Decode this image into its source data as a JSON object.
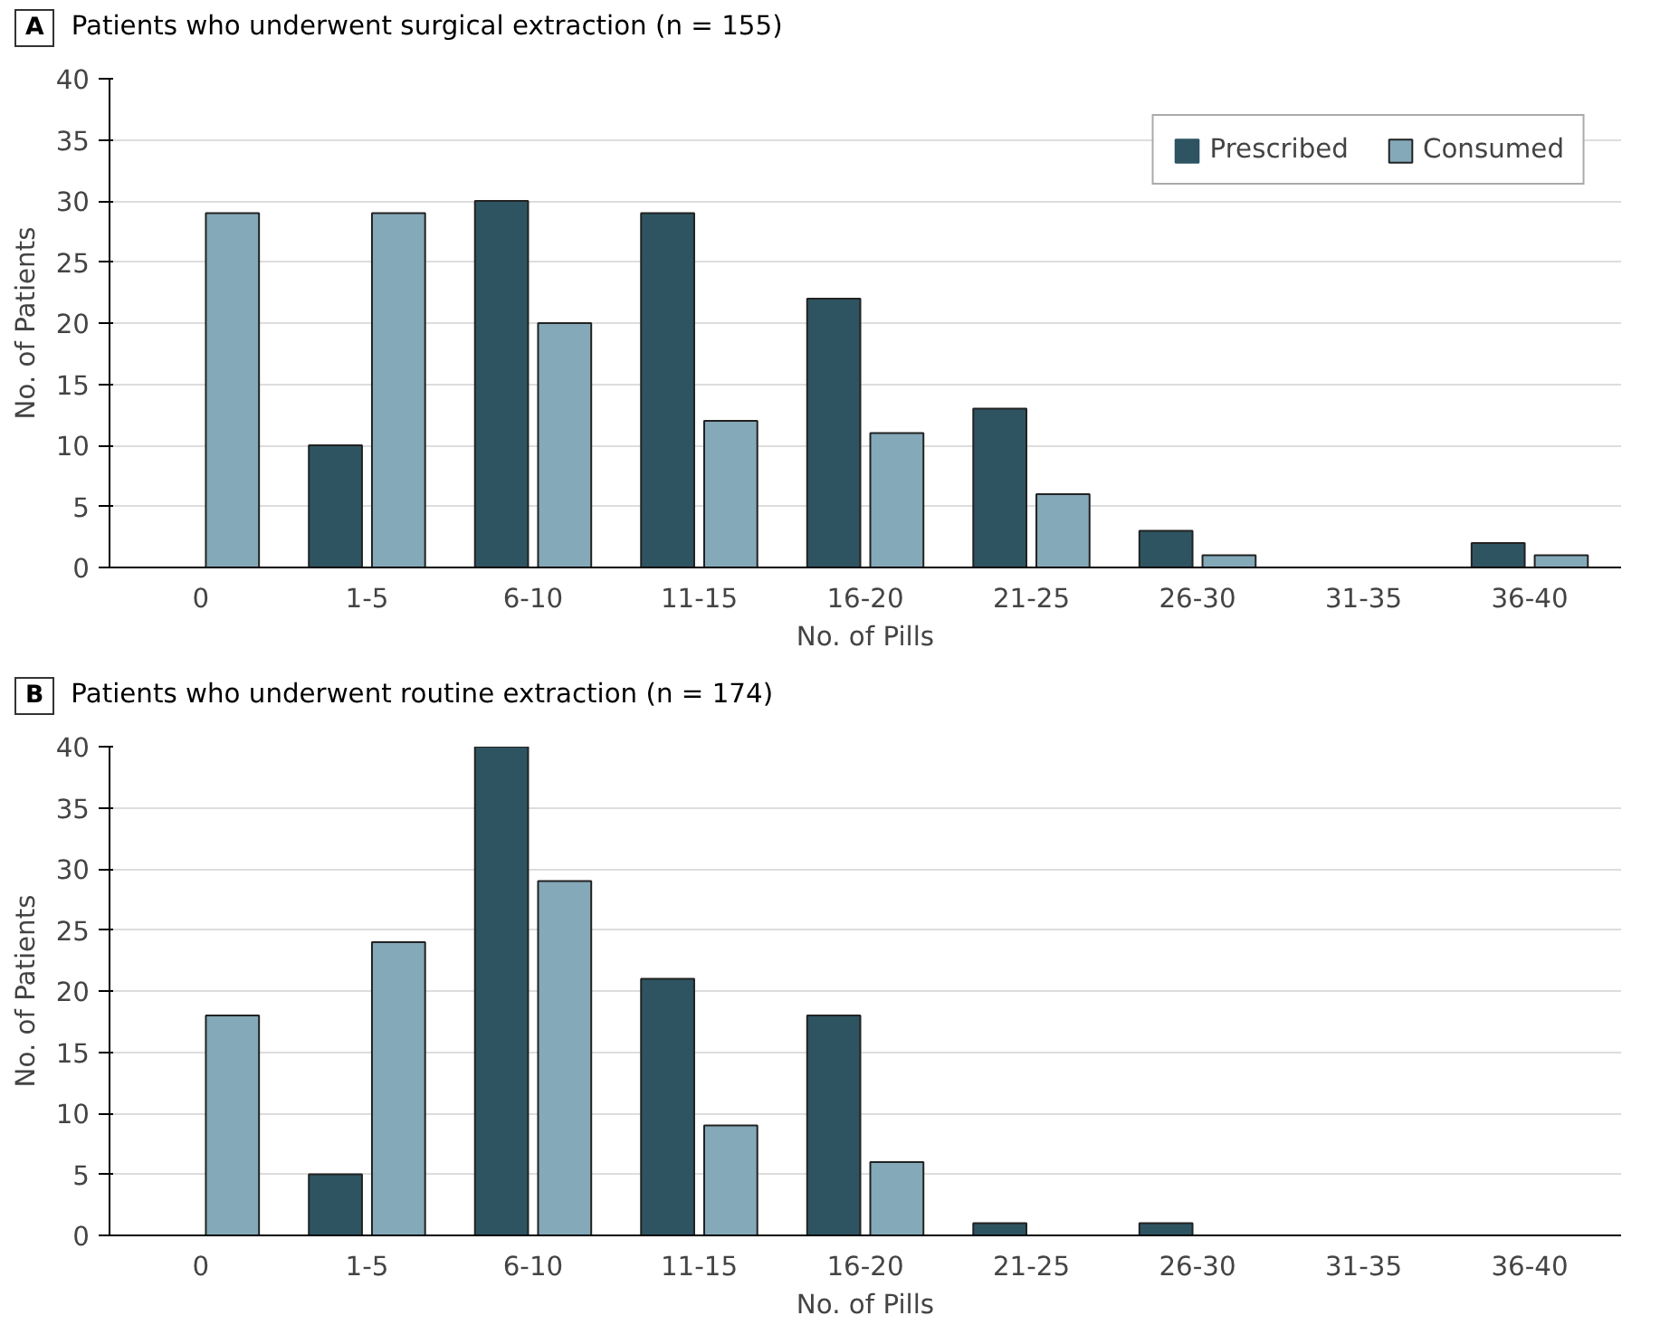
{
  "chart_data": [
    {
      "type": "bar",
      "title": "Patients who underwent surgical extraction (n = 155)",
      "annotations": [
        "A"
      ],
      "xlabel": "No. of Pills",
      "ylabel": "No. of Patients",
      "categories": [
        "0",
        "1-5",
        "6-10",
        "11-15",
        "16-20",
        "21-25",
        "26-30",
        "31-35",
        "36-40"
      ],
      "series": [
        {
          "name": "Prescribed",
          "color": "#2e5461",
          "values": [
            0,
            10,
            30,
            29,
            22,
            13,
            3,
            0,
            2
          ]
        },
        {
          "name": "Consumed",
          "color": "#84a9b8",
          "values": [
            29,
            29,
            20,
            12,
            11,
            6,
            1,
            0,
            1
          ]
        }
      ],
      "ylim": [
        0,
        40
      ],
      "yticks": [
        0,
        5,
        10,
        15,
        20,
        25,
        30,
        35,
        40
      ],
      "grid": "y",
      "legend": "top right"
    },
    {
      "type": "bar",
      "title": "Patients who underwent routine extraction (n = 174)",
      "annotations": [
        "B"
      ],
      "xlabel": "No. of Pills",
      "ylabel": "No. of Patients",
      "categories": [
        "0",
        "1-5",
        "6-10",
        "11-15",
        "16-20",
        "21-25",
        "26-30",
        "31-35",
        "36-40"
      ],
      "series": [
        {
          "color": "#2e5461",
          "values": [
            0,
            5,
            40,
            21,
            18,
            1,
            1,
            0,
            0
          ]
        },
        {
          "color": "#84a9b8",
          "values": [
            18,
            24,
            29,
            9,
            6,
            0,
            0,
            0,
            0
          ]
        }
      ],
      "ylim": [
        0,
        40
      ],
      "yticks": [
        0,
        5,
        10,
        15,
        20,
        25,
        30,
        35,
        40
      ],
      "grid": "y"
    }
  ]
}
